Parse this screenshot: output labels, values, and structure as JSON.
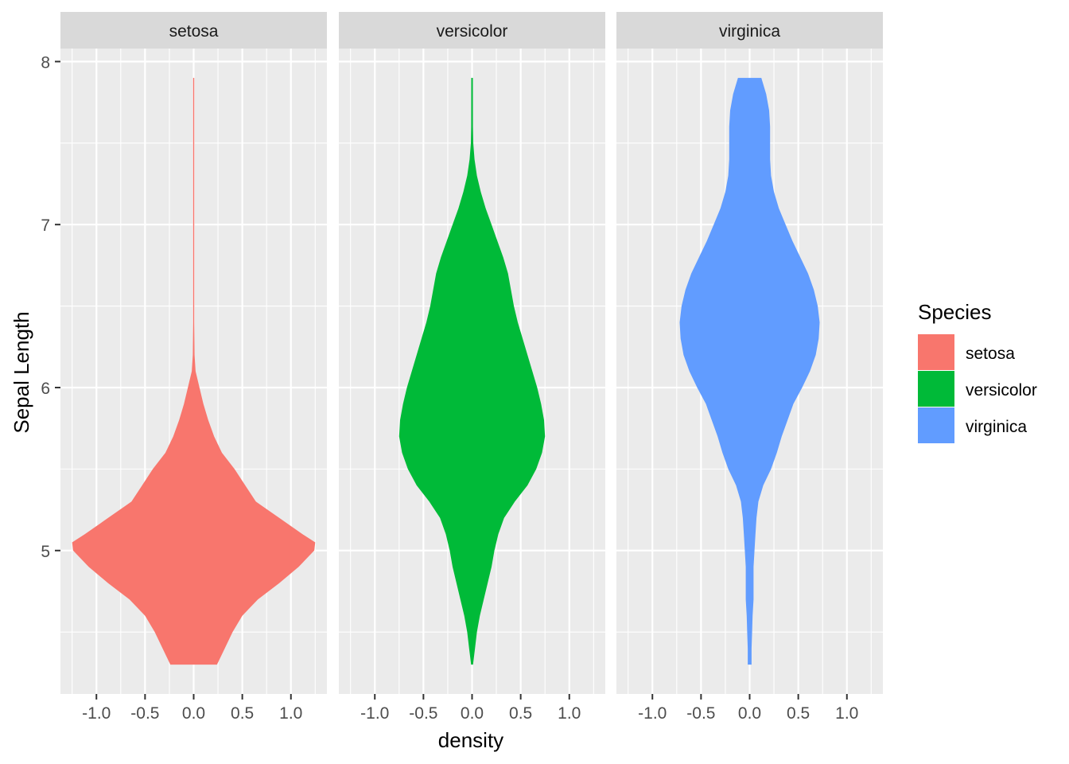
{
  "chart_data": {
    "type": "violin",
    "facet_variable": "Species",
    "xlabel": "density",
    "ylabel": "Sepal Length",
    "xlim": [
      -1.37,
      1.37
    ],
    "ylim": [
      4.12,
      8.08
    ],
    "x_ticks": [
      -1.0,
      -0.5,
      0.0,
      0.5,
      1.0
    ],
    "x_tick_labels": [
      "-1.0",
      "-0.5",
      "0.0",
      "0.5",
      "1.0"
    ],
    "y_ticks": [
      5,
      6,
      7,
      8
    ],
    "y_tick_labels": [
      "5",
      "6",
      "7",
      "8"
    ],
    "grid": true,
    "legend": {
      "title": "Species",
      "position": "right",
      "entries": [
        {
          "label": "setosa",
          "color": "#F8766D"
        },
        {
          "label": "versicolor",
          "color": "#00BA38"
        },
        {
          "label": "virginica",
          "color": "#619CFF"
        }
      ]
    },
    "panels": [
      {
        "title": "setosa",
        "color": "#F8766D",
        "y_range": [
          4.3,
          7.9
        ],
        "profile": [
          [
            4.3,
            0.24
          ],
          [
            4.4,
            0.32
          ],
          [
            4.5,
            0.4
          ],
          [
            4.6,
            0.5
          ],
          [
            4.7,
            0.66
          ],
          [
            4.8,
            0.88
          ],
          [
            4.9,
            1.08
          ],
          [
            5.0,
            1.24
          ],
          [
            5.05,
            1.25
          ],
          [
            5.1,
            1.12
          ],
          [
            5.2,
            0.88
          ],
          [
            5.3,
            0.64
          ],
          [
            5.4,
            0.53
          ],
          [
            5.5,
            0.42
          ],
          [
            5.6,
            0.29
          ],
          [
            5.7,
            0.21
          ],
          [
            5.8,
            0.15
          ],
          [
            5.9,
            0.1
          ],
          [
            6.0,
            0.06
          ],
          [
            6.1,
            0.02
          ],
          [
            6.2,
            0.009
          ],
          [
            6.4,
            0.006
          ],
          [
            7.9,
            0.006
          ]
        ]
      },
      {
        "title": "versicolor",
        "color": "#00BA38",
        "y_range": [
          4.3,
          7.9
        ],
        "profile": [
          [
            4.3,
            0.01
          ],
          [
            4.4,
            0.03
          ],
          [
            4.5,
            0.05
          ],
          [
            4.6,
            0.08
          ],
          [
            4.7,
            0.12
          ],
          [
            4.8,
            0.16
          ],
          [
            4.9,
            0.2
          ],
          [
            5.0,
            0.23
          ],
          [
            5.1,
            0.27
          ],
          [
            5.2,
            0.33
          ],
          [
            5.3,
            0.44
          ],
          [
            5.4,
            0.57
          ],
          [
            5.5,
            0.66
          ],
          [
            5.6,
            0.72
          ],
          [
            5.7,
            0.75
          ],
          [
            5.8,
            0.74
          ],
          [
            5.9,
            0.71
          ],
          [
            6.0,
            0.67
          ],
          [
            6.1,
            0.62
          ],
          [
            6.2,
            0.57
          ],
          [
            6.3,
            0.52
          ],
          [
            6.4,
            0.47
          ],
          [
            6.5,
            0.43
          ],
          [
            6.6,
            0.4
          ],
          [
            6.7,
            0.37
          ],
          [
            6.8,
            0.32
          ],
          [
            6.9,
            0.26
          ],
          [
            7.0,
            0.2
          ],
          [
            7.1,
            0.14
          ],
          [
            7.2,
            0.09
          ],
          [
            7.3,
            0.05
          ],
          [
            7.4,
            0.025
          ],
          [
            7.5,
            0.012
          ],
          [
            7.6,
            0.009
          ],
          [
            7.9,
            0.008
          ]
        ]
      },
      {
        "title": "virginica",
        "color": "#619CFF",
        "y_range": [
          4.3,
          7.9
        ],
        "profile": [
          [
            4.3,
            0.02
          ],
          [
            4.4,
            0.02
          ],
          [
            4.5,
            0.025
          ],
          [
            4.6,
            0.03
          ],
          [
            4.7,
            0.04
          ],
          [
            4.8,
            0.04
          ],
          [
            4.9,
            0.04
          ],
          [
            5.0,
            0.05
          ],
          [
            5.1,
            0.06
          ],
          [
            5.2,
            0.07
          ],
          [
            5.3,
            0.09
          ],
          [
            5.4,
            0.14
          ],
          [
            5.5,
            0.22
          ],
          [
            5.6,
            0.28
          ],
          [
            5.7,
            0.33
          ],
          [
            5.8,
            0.39
          ],
          [
            5.9,
            0.45
          ],
          [
            6.0,
            0.54
          ],
          [
            6.1,
            0.62
          ],
          [
            6.2,
            0.68
          ],
          [
            6.3,
            0.71
          ],
          [
            6.4,
            0.72
          ],
          [
            6.5,
            0.7
          ],
          [
            6.6,
            0.66
          ],
          [
            6.7,
            0.6
          ],
          [
            6.8,
            0.52
          ],
          [
            6.9,
            0.44
          ],
          [
            7.0,
            0.37
          ],
          [
            7.1,
            0.3
          ],
          [
            7.2,
            0.25
          ],
          [
            7.3,
            0.22
          ],
          [
            7.4,
            0.21
          ],
          [
            7.5,
            0.21
          ],
          [
            7.6,
            0.21
          ],
          [
            7.7,
            0.2
          ],
          [
            7.8,
            0.17
          ],
          [
            7.9,
            0.12
          ]
        ]
      }
    ]
  }
}
